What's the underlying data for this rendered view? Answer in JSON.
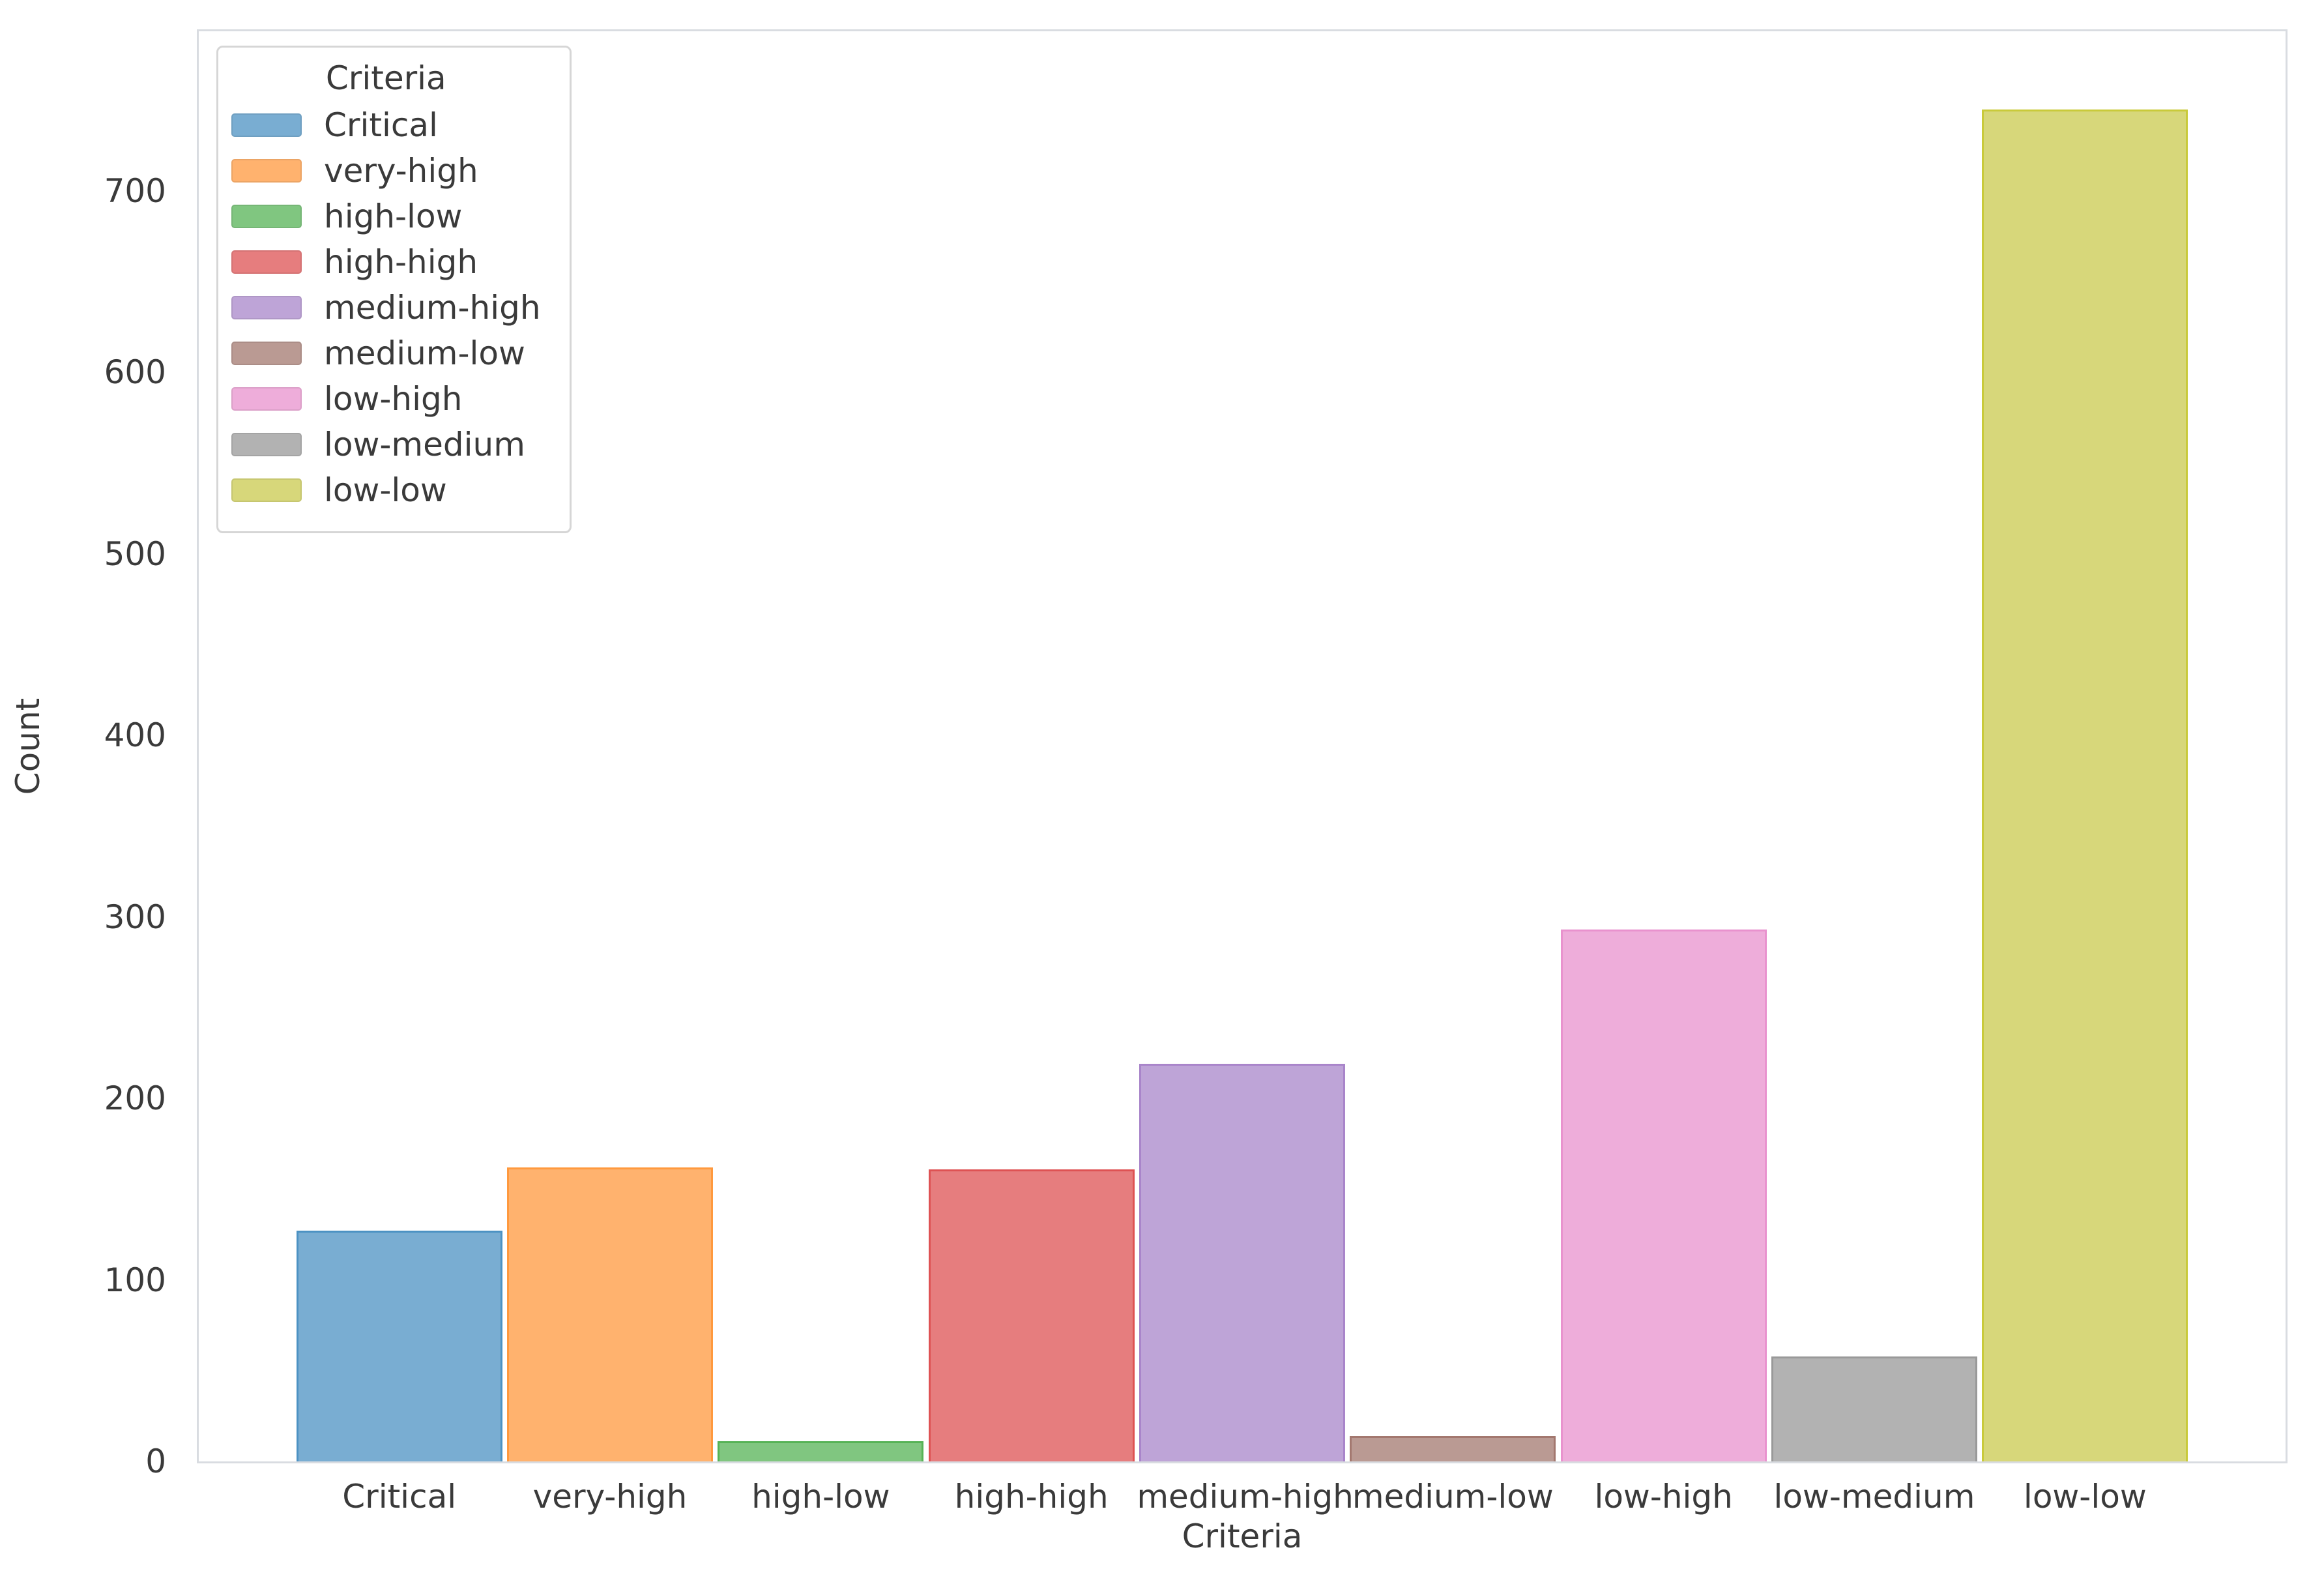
{
  "figure": {
    "background": "#ffffff",
    "spine_color": "#d9dce1",
    "text_color": "#3a3a3a"
  },
  "chart_data": {
    "type": "bar",
    "title": "",
    "xlabel": "Criteria",
    "ylabel": "Count",
    "categories": [
      "Critical",
      "very-high",
      "high-low",
      "high-high",
      "medium-high",
      "medium-low",
      "low-high",
      "low-medium",
      "low-low"
    ],
    "values": [
      127,
      162,
      11,
      161,
      219,
      14,
      293,
      58,
      745
    ],
    "ylim": [
      0,
      788
    ],
    "yticks": [
      0,
      100,
      200,
      300,
      400,
      500,
      600,
      700
    ],
    "grid": false,
    "bar_colors": [
      {
        "fill": "#79ADD2",
        "edge": "#4C92C3"
      },
      {
        "fill": "#FFB26E",
        "edge": "#FF993E"
      },
      {
        "fill": "#80C680",
        "edge": "#56B356"
      },
      {
        "fill": "#E67D7E",
        "edge": "#DE5253"
      },
      {
        "fill": "#BEA4D7",
        "edge": "#A985CA"
      },
      {
        "fill": "#BA9A93",
        "edge": "#A3786F"
      },
      {
        "fill": "#EEADDA",
        "edge": "#E992CE"
      },
      {
        "fill": "#B2B2B2",
        "edge": "#999999"
      },
      {
        "fill": "#D7D77A",
        "edge": "#C9CA3A"
      }
    ],
    "legend": {
      "title": "Criteria",
      "position": "upper-left",
      "entries": [
        {
          "label": "Critical",
          "fill": "#79ADD2"
        },
        {
          "label": "very-high",
          "fill": "#FFB26E"
        },
        {
          "label": "high-low",
          "fill": "#80C680"
        },
        {
          "label": "high-high",
          "fill": "#E67D7E"
        },
        {
          "label": "medium-high",
          "fill": "#BEA4D7"
        },
        {
          "label": "medium-low",
          "fill": "#BA9A93"
        },
        {
          "label": "low-high",
          "fill": "#EEADDA"
        },
        {
          "label": "low-medium",
          "fill": "#B2B2B2"
        },
        {
          "label": "low-low",
          "fill": "#D7D77A"
        }
      ]
    }
  }
}
